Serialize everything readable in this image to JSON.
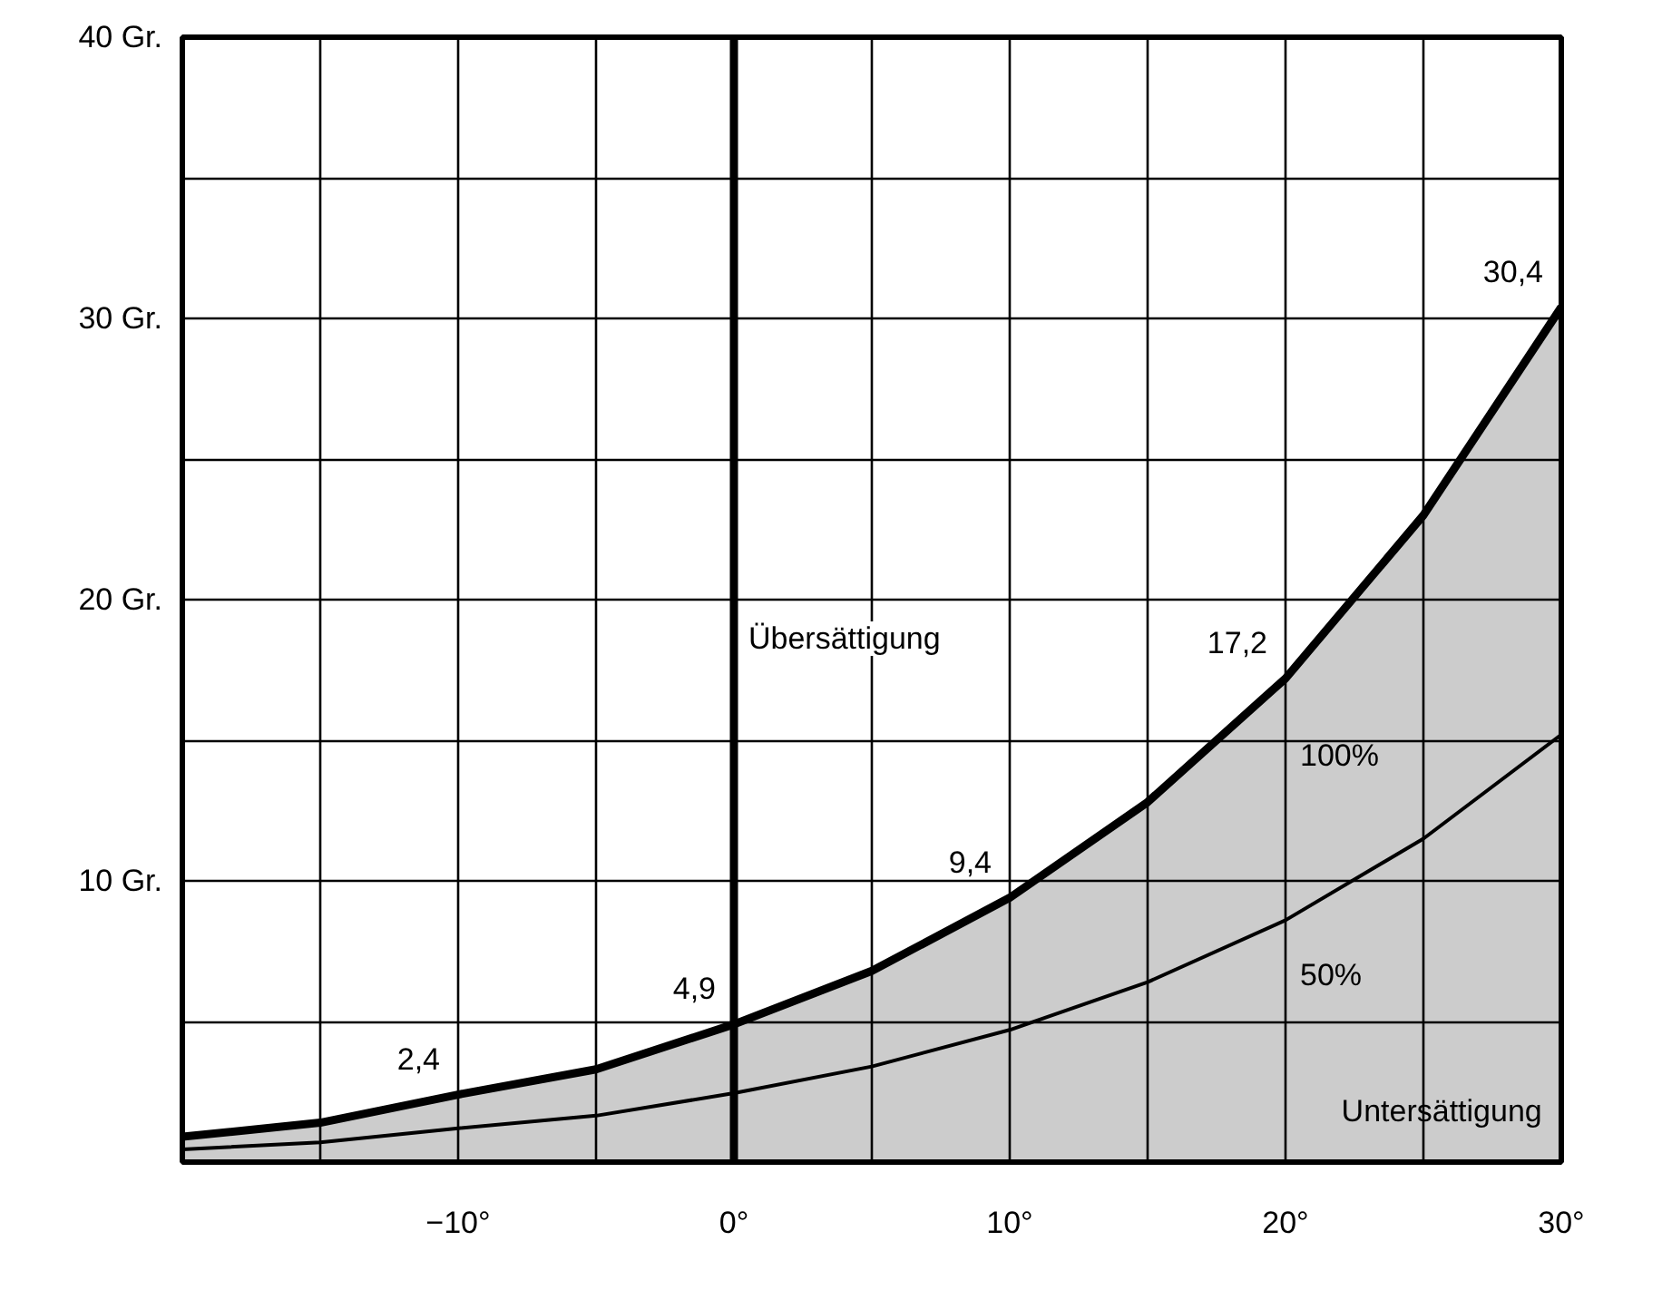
{
  "chart_data": {
    "type": "line",
    "x": [
      -20,
      -15,
      -10,
      -5,
      0,
      5,
      10,
      15,
      20,
      25,
      30
    ],
    "xlim": [
      -20,
      30
    ],
    "ylim": [
      0,
      40
    ],
    "xticks": [
      {
        "value": -20,
        "label": null
      },
      {
        "value": -15,
        "label": null
      },
      {
        "value": -10,
        "label": "−10°"
      },
      {
        "value": -5,
        "label": null
      },
      {
        "value": 0,
        "label": "0°"
      },
      {
        "value": 5,
        "label": null
      },
      {
        "value": 10,
        "label": "10°"
      },
      {
        "value": 15,
        "label": null
      },
      {
        "value": 20,
        "label": "20°"
      },
      {
        "value": 25,
        "label": null
      },
      {
        "value": 30,
        "label": "30°"
      }
    ],
    "yticks": [
      {
        "value": 0,
        "label": null
      },
      {
        "value": 5,
        "label": null
      },
      {
        "value": 10,
        "label": "10 Gr."
      },
      {
        "value": 15,
        "label": null
      },
      {
        "value": 20,
        "label": "20 Gr."
      },
      {
        "value": 25,
        "label": null
      },
      {
        "value": 30,
        "label": "30 Gr."
      },
      {
        "value": 35,
        "label": null
      },
      {
        "value": 40,
        "label": "40 Gr."
      }
    ],
    "grid": true,
    "series": [
      {
        "name": "100%",
        "type": "area",
        "color": "#000000",
        "values": [
          0.9,
          1.4,
          2.4,
          3.3,
          4.9,
          6.8,
          9.4,
          12.8,
          17.2,
          23.0,
          30.4
        ]
      },
      {
        "name": "50%",
        "color": "#000000",
        "values": [
          0.45,
          0.7,
          1.2,
          1.65,
          2.45,
          3.4,
          4.7,
          6.4,
          8.6,
          11.5,
          15.2
        ]
      }
    ],
    "ref_lines": [
      {
        "axis": "x",
        "value": 0,
        "label": null,
        "color": "#000000"
      }
    ],
    "annotations": [
      {
        "text": "2,4",
        "x": -10,
        "y": 2.4
      },
      {
        "text": "4,9",
        "x": 0,
        "y": 4.9
      },
      {
        "text": "9,4",
        "x": 10,
        "y": 9.4
      },
      {
        "text": "17,2",
        "x": 20,
        "y": 17.2
      },
      {
        "text": "30,4",
        "x": 30,
        "y": 30.4
      },
      "Übersättigung",
      "Untersättigung"
    ]
  }
}
